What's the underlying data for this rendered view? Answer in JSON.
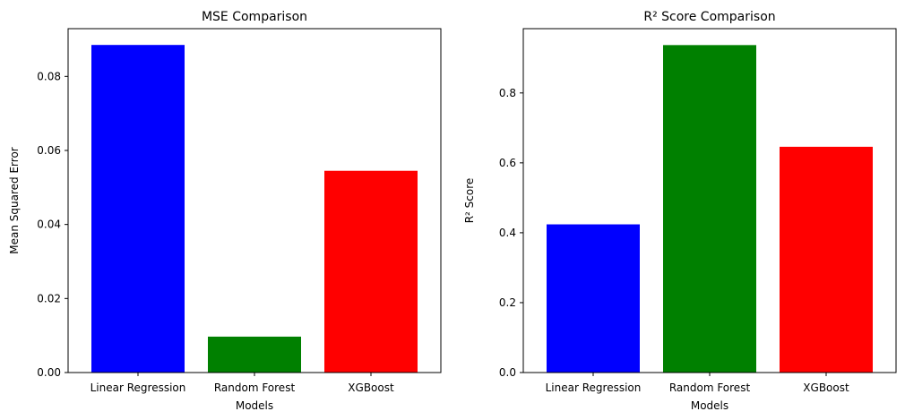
{
  "chart_data": [
    {
      "type": "bar",
      "title": "MSE Comparison",
      "xlabel": "Models",
      "ylabel": "Mean Squared Error",
      "categories": [
        "Linear Regression",
        "Random Forest",
        "XGBoost"
      ],
      "values": [
        0.0885,
        0.0097,
        0.0545
      ],
      "colors": [
        "#0000ff",
        "#008000",
        "#ff0000"
      ],
      "ylim": [
        0,
        0.0929
      ],
      "yticks": [
        0.0,
        0.02,
        0.04,
        0.06,
        0.08
      ],
      "ytick_labels": [
        "0.00",
        "0.02",
        "0.04",
        "0.06",
        "0.08"
      ],
      "grid": false,
      "legend": "none"
    },
    {
      "type": "bar",
      "title": "R² Score Comparison",
      "xlabel": "Models",
      "ylabel": "R² Score",
      "categories": [
        "Linear Regression",
        "Random Forest",
        "XGBoost"
      ],
      "values": [
        0.424,
        0.937,
        0.646
      ],
      "colors": [
        "#0000ff",
        "#008000",
        "#ff0000"
      ],
      "ylim": [
        0,
        0.984
      ],
      "yticks": [
        0.0,
        0.2,
        0.4,
        0.6,
        0.8
      ],
      "ytick_labels": [
        "0.0",
        "0.2",
        "0.4",
        "0.6",
        "0.8"
      ],
      "grid": false,
      "legend": "none"
    }
  ]
}
